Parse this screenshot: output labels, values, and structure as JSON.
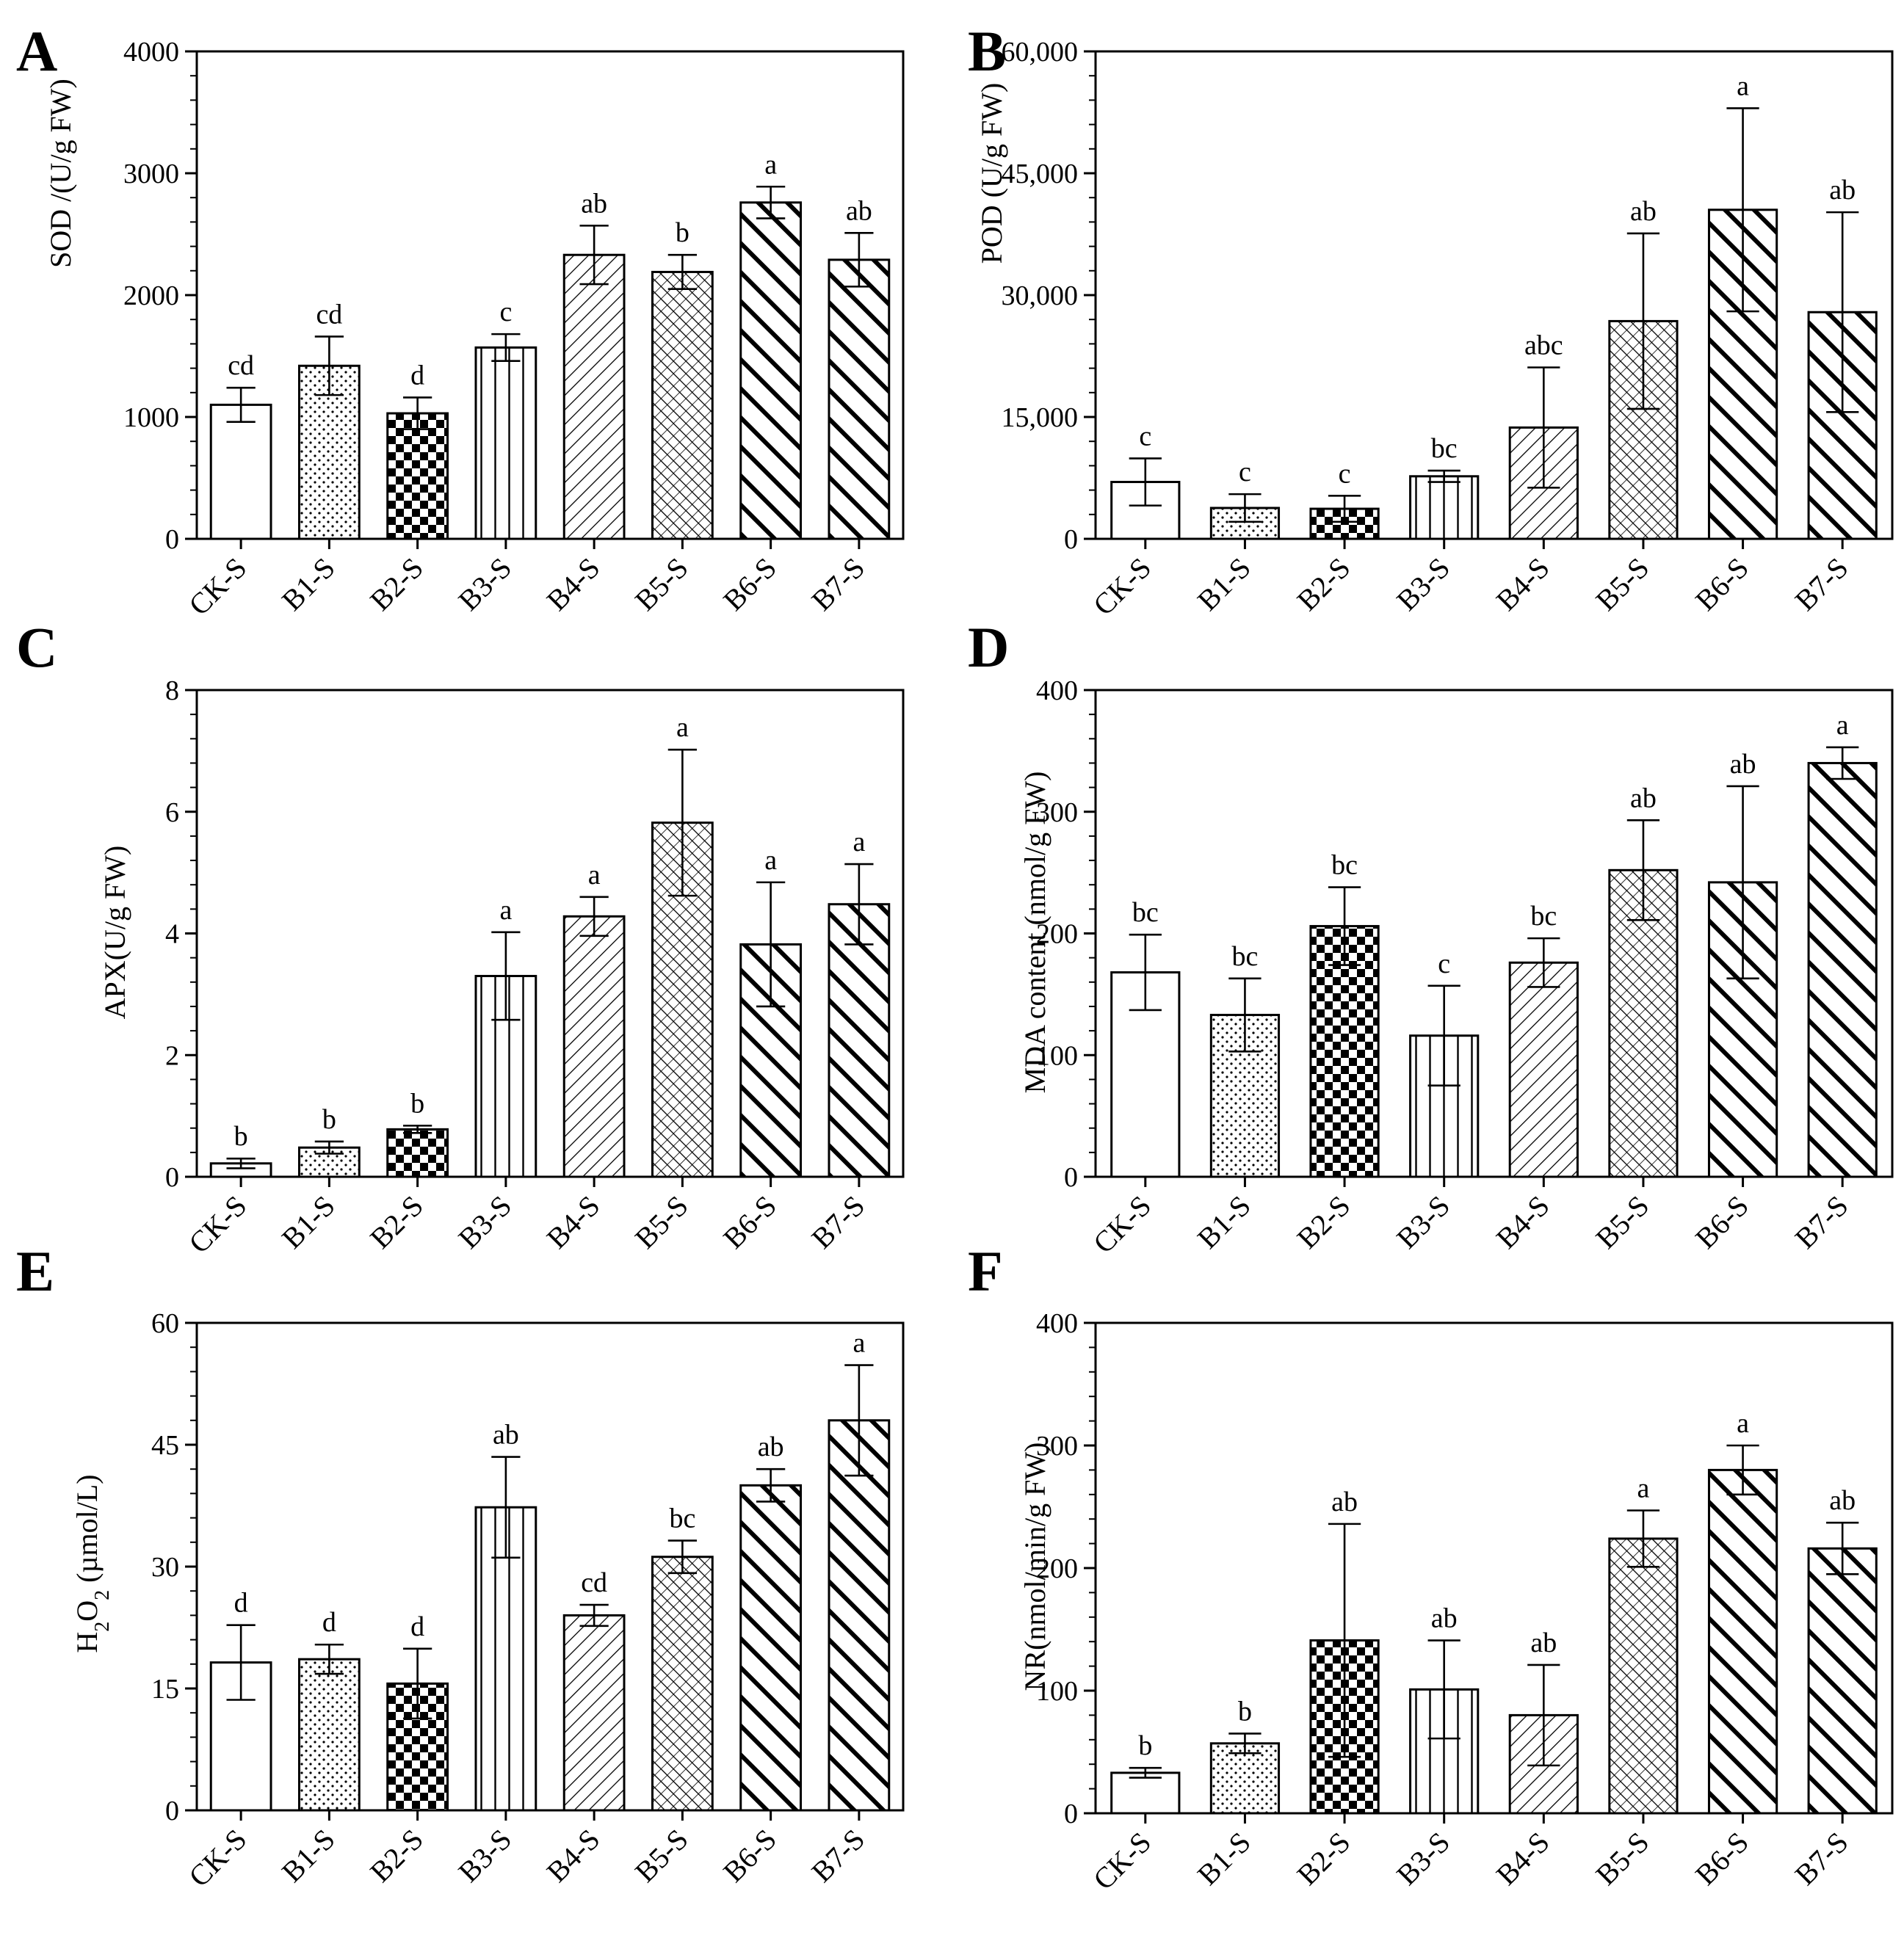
{
  "figure": {
    "categories": [
      "CK-S",
      "B1-S",
      "B2-S",
      "B3-S",
      "B4-S",
      "B5-S",
      "B6-S",
      "B7-S"
    ],
    "patterns": [
      "blank",
      "dots",
      "checker",
      "vlines",
      "diag-fine",
      "crosshatch",
      "diag-thick",
      "diag-thick"
    ],
    "bar_color": "#000000",
    "background": "#ffffff"
  },
  "chart_data": [
    {
      "type": "bar",
      "panel": "A",
      "title": "",
      "xlabel": "",
      "ylabel": "SOD /(U/g FW)",
      "ylim": [
        0,
        4000
      ],
      "yticks": [
        0,
        1000,
        2000,
        3000,
        4000
      ],
      "ytick_labels": [
        "0",
        "1000",
        "2000",
        "3000",
        "4000"
      ],
      "categories": [
        "CK-S",
        "B1-S",
        "B2-S",
        "B3-S",
        "B4-S",
        "B5-S",
        "B6-S",
        "B7-S"
      ],
      "values": [
        1100,
        1420,
        1030,
        1570,
        2330,
        2190,
        2760,
        2290
      ],
      "errors": [
        140,
        240,
        130,
        110,
        240,
        140,
        130,
        220
      ],
      "significance": [
        "cd",
        "cd",
        "d",
        "c",
        "ab",
        "b",
        "a",
        "ab"
      ]
    },
    {
      "type": "bar",
      "panel": "B",
      "title": "",
      "xlabel": "",
      "ylabel": "POD (U/g FW)",
      "ylim": [
        0,
        60000
      ],
      "yticks": [
        0,
        15000,
        30000,
        45000,
        60000
      ],
      "ytick_labels": [
        "0",
        "15,000",
        "30,000",
        "45,000",
        "60,000"
      ],
      "categories": [
        "CK-S",
        "B1-S",
        "B2-S",
        "B3-S",
        "B4-S",
        "B5-S",
        "B6-S",
        "B7-S"
      ],
      "values": [
        7000,
        3800,
        3700,
        7700,
        13700,
        26800,
        40500,
        27900
      ],
      "errors": [
        2900,
        1700,
        1600,
        700,
        7400,
        10800,
        12500,
        12300
      ],
      "significance": [
        "c",
        "c",
        "c",
        "bc",
        "abc",
        "ab",
        "a",
        "ab"
      ]
    },
    {
      "type": "bar",
      "panel": "C",
      "title": "",
      "xlabel": "",
      "ylabel": "APX(U/g FW)",
      "ylim": [
        0,
        8
      ],
      "yticks": [
        0,
        2,
        4,
        6,
        8
      ],
      "ytick_labels": [
        "0",
        "2",
        "4",
        "6",
        "8"
      ],
      "categories": [
        "CK-S",
        "B1-S",
        "B2-S",
        "B3-S",
        "B4-S",
        "B5-S",
        "B6-S",
        "B7-S"
      ],
      "values": [
        0.22,
        0.48,
        0.78,
        3.3,
        4.28,
        5.82,
        3.82,
        4.48
      ],
      "errors": [
        0.08,
        0.1,
        0.06,
        0.72,
        0.32,
        1.2,
        1.02,
        0.66
      ],
      "significance": [
        "b",
        "b",
        "b",
        "a",
        "a",
        "a",
        "a",
        "a"
      ]
    },
    {
      "type": "bar",
      "panel": "D",
      "title": "",
      "xlabel": "",
      "ylabel": "MDA content (nmol/g FW)",
      "ylim": [
        0,
        400
      ],
      "yticks": [
        0,
        100,
        200,
        300,
        400
      ],
      "ytick_labels": [
        "0",
        "100",
        "200",
        "300",
        "400"
      ],
      "categories": [
        "CK-S",
        "B1-S",
        "B2-S",
        "B3-S",
        "B4-S",
        "B5-S",
        "B6-S",
        "B7-S"
      ],
      "values": [
        168,
        133,
        206,
        116,
        176,
        252,
        242,
        340
      ],
      "errors": [
        31,
        30,
        32,
        41,
        20,
        41,
        79,
        13
      ],
      "significance": [
        "bc",
        "bc",
        "bc",
        "c",
        "bc",
        "ab",
        "ab",
        "a"
      ]
    },
    {
      "type": "bar",
      "panel": "E",
      "title": "",
      "xlabel": "",
      "ylabel": "H2O2 (µmol/L)",
      "ylabel_parts": [
        "H",
        "2",
        "O",
        "2",
        " (µmol/L)"
      ],
      "ylim": [
        0,
        60
      ],
      "yticks": [
        0,
        15,
        30,
        45,
        60
      ],
      "ytick_labels": [
        "0",
        "15",
        "30",
        "45",
        "60"
      ],
      "categories": [
        "CK-S",
        "B1-S",
        "B2-S",
        "B3-S",
        "B4-S",
        "B5-S",
        "B6-S",
        "B7-S"
      ],
      "values": [
        18.2,
        18.6,
        15.6,
        37.3,
        24.0,
        31.2,
        40.0,
        48.0
      ],
      "errors": [
        4.6,
        1.8,
        4.3,
        6.2,
        1.3,
        2.0,
        2.0,
        6.8
      ],
      "significance": [
        "d",
        "d",
        "d",
        "ab",
        "cd",
        "bc",
        "ab",
        "a"
      ]
    },
    {
      "type": "bar",
      "panel": "F",
      "title": "",
      "xlabel": "",
      "ylabel": "NR(nmol/min/g FW)",
      "ylim": [
        0,
        400
      ],
      "yticks": [
        0,
        100,
        200,
        300,
        400
      ],
      "ytick_labels": [
        "0",
        "100",
        "200",
        "300",
        "400"
      ],
      "categories": [
        "CK-S",
        "B1-S",
        "B2-S",
        "B3-S",
        "B4-S",
        "B5-S",
        "B6-S",
        "B7-S"
      ],
      "values": [
        33,
        57,
        141,
        101,
        80,
        224,
        280,
        216
      ],
      "errors": [
        4,
        8,
        95,
        40,
        41,
        23,
        20,
        21
      ],
      "significance": [
        "b",
        "b",
        "ab",
        "ab",
        "ab",
        "a",
        "a",
        "ab"
      ]
    }
  ]
}
